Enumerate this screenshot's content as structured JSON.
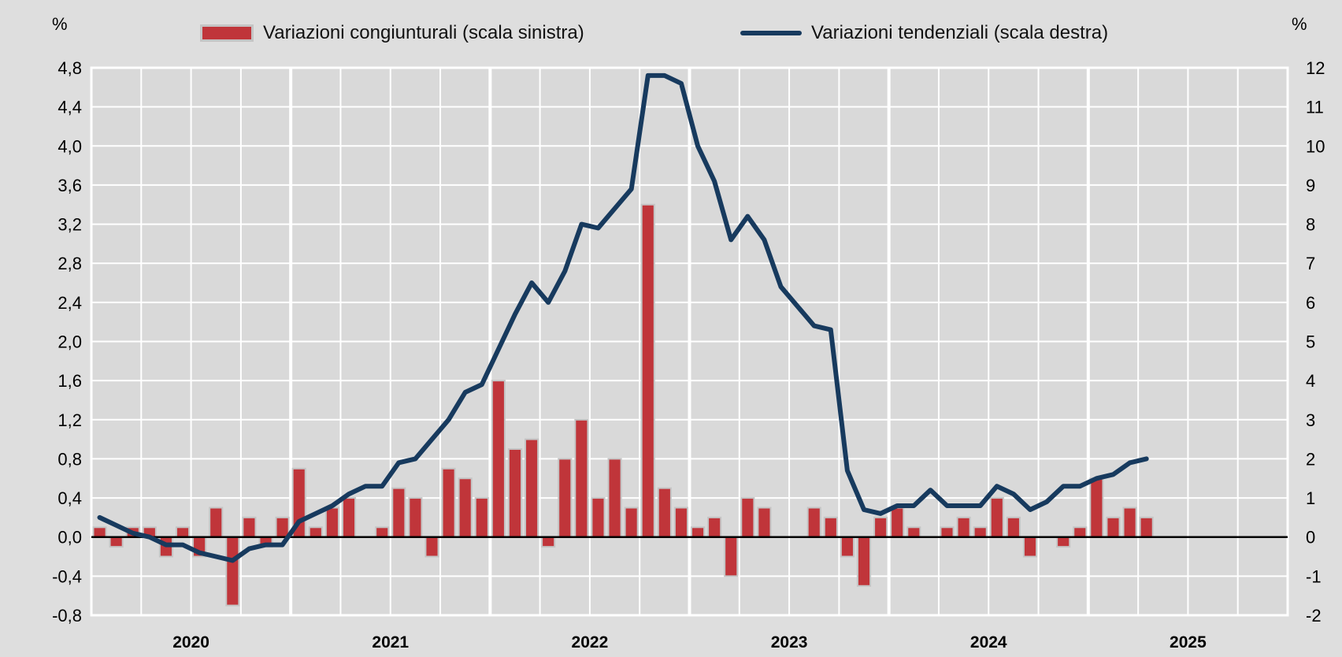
{
  "chart_data": {
    "type": "bar+line",
    "left_unit": "%",
    "right_unit": "%",
    "years": [
      "2020",
      "2021",
      "2022",
      "2023",
      "2024",
      "2025"
    ],
    "months_per_year": 12,
    "left_axis": {
      "ylim": [
        -0.8,
        4.8
      ],
      "ticks": [
        "4,8",
        "4,4",
        "4,0",
        "3,6",
        "3,2",
        "2,8",
        "2,4",
        "2,0",
        "1,6",
        "1,2",
        "0,8",
        "0,4",
        "0,0",
        "-0,4",
        "-0,8"
      ]
    },
    "right_axis": {
      "ylim": [
        -2,
        12
      ],
      "ticks": [
        "12",
        "11",
        "10",
        "9",
        "8",
        "7",
        "6",
        "5",
        "4",
        "3",
        "2",
        "1",
        "0",
        "-1",
        "-2"
      ]
    },
    "grid": true,
    "legend_position": "top",
    "series": [
      {
        "name": "Variazioni congiunturali (scala sinistra)",
        "type": "bar",
        "axis": "left",
        "color": "#c0353a",
        "values": [
          0.1,
          -0.1,
          0.1,
          0.1,
          -0.2,
          0.1,
          -0.2,
          0.3,
          -0.7,
          0.2,
          -0.1,
          0.2,
          0.7,
          0.1,
          0.3,
          0.4,
          0.0,
          0.1,
          0.5,
          0.4,
          -0.2,
          0.7,
          0.6,
          0.4,
          1.6,
          0.9,
          1.0,
          -0.1,
          0.8,
          1.2,
          0.4,
          0.8,
          0.3,
          3.4,
          0.5,
          0.3,
          0.1,
          0.2,
          -0.4,
          0.4,
          0.3,
          0.0,
          0.0,
          0.3,
          0.2,
          -0.2,
          -0.5,
          0.2,
          0.3,
          0.1,
          0.0,
          0.1,
          0.2,
          0.1,
          0.4,
          0.2,
          -0.2,
          0.0,
          -0.1,
          0.1,
          0.6,
          0.2,
          0.3,
          0.2
        ]
      },
      {
        "name": "Variazioni tendenziali (scala destra)",
        "type": "line",
        "axis": "right",
        "color": "#173a5e",
        "values": [
          0.5,
          0.3,
          0.1,
          0.0,
          -0.2,
          -0.2,
          -0.4,
          -0.5,
          -0.6,
          -0.3,
          -0.2,
          -0.2,
          0.4,
          0.6,
          0.8,
          1.1,
          1.3,
          1.3,
          1.9,
          2.0,
          2.5,
          3.0,
          3.7,
          3.9,
          4.8,
          5.7,
          6.5,
          6.0,
          6.8,
          8.0,
          7.9,
          8.4,
          8.9,
          11.8,
          11.8,
          11.6,
          10.0,
          9.1,
          7.6,
          8.2,
          7.6,
          6.4,
          5.9,
          5.4,
          5.3,
          1.7,
          0.7,
          0.6,
          0.8,
          0.8,
          1.2,
          0.8,
          0.8,
          0.8,
          1.3,
          1.1,
          0.7,
          0.9,
          1.3,
          1.3,
          1.5,
          1.6,
          1.9,
          2.0
        ]
      }
    ]
  }
}
